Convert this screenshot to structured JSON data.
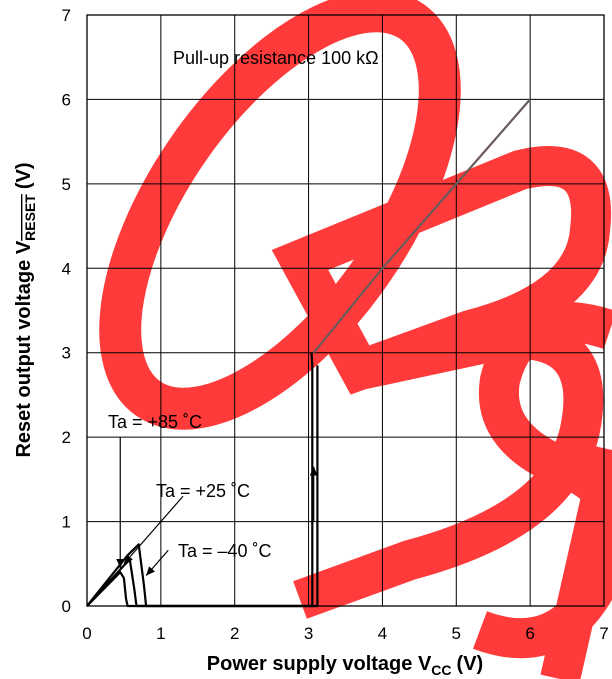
{
  "chart_data": {
    "type": "line",
    "xlabel": "Power supply voltage V",
    "xlabel_sub": "CC",
    "xlabel_unit": "(V)",
    "ylabel": "Reset output voltage V",
    "ylabel_sub": "RESET",
    "ylabel_unit": "(V)",
    "xlim": [
      0,
      7
    ],
    "ylim": [
      0,
      7
    ],
    "xticks": [
      "0",
      "1",
      "2",
      "3",
      "4",
      "5",
      "6",
      "7"
    ],
    "yticks": [
      "0",
      "1",
      "2",
      "3",
      "4",
      "5",
      "6",
      "7"
    ],
    "grid": true,
    "annotations": {
      "condition": "Pull-up resistance 100 kΩ",
      "t85": "Ta = +85 ˚C",
      "t25": "Ta = +25 ˚C",
      "tm40": "Ta = –40 ˚C"
    },
    "series": [
      {
        "key": "ta85",
        "color": "#000000",
        "x": [
          0,
          0.45,
          0.5,
          0.53,
          0.55,
          3.05,
          3.05,
          3.04
        ],
        "y": [
          0,
          0.4,
          0.33,
          0.08,
          0,
          0,
          2.85,
          3.0
        ]
      },
      {
        "key": "ta25",
        "color": "#000000",
        "x": [
          0,
          0.5,
          0.58,
          0.64,
          0.67,
          3.09
        ],
        "y": [
          0,
          0.48,
          0.55,
          0.2,
          0,
          0
        ]
      },
      {
        "key": "tm40",
        "color": "#000000",
        "x": [
          0,
          0.55,
          0.7,
          0.77,
          0.8,
          3.12,
          3.12
        ],
        "y": [
          0,
          0.6,
          0.73,
          0.25,
          0,
          0,
          2.85
        ]
      },
      {
        "key": "rise",
        "color": "#6b5a5a",
        "x": [
          3.07,
          4.0,
          5.0,
          6.0
        ],
        "y": [
          3.0,
          4.0,
          5.0,
          6.0
        ]
      }
    ],
    "arrows": [
      {
        "x1": 0.45,
        "y1": 2.0,
        "x2": 0.45,
        "y2": 0.45
      },
      {
        "x1": 1.3,
        "y1": 1.3,
        "x2": 0.5,
        "y2": 0.5
      },
      {
        "x1": 1.1,
        "y1": 0.66,
        "x2": 0.8,
        "y2": 0.36
      },
      {
        "x1": 3.07,
        "y1": 1.0,
        "x2": 3.07,
        "y2": 1.65
      }
    ],
    "watermark_color": "#ff2a2a"
  }
}
